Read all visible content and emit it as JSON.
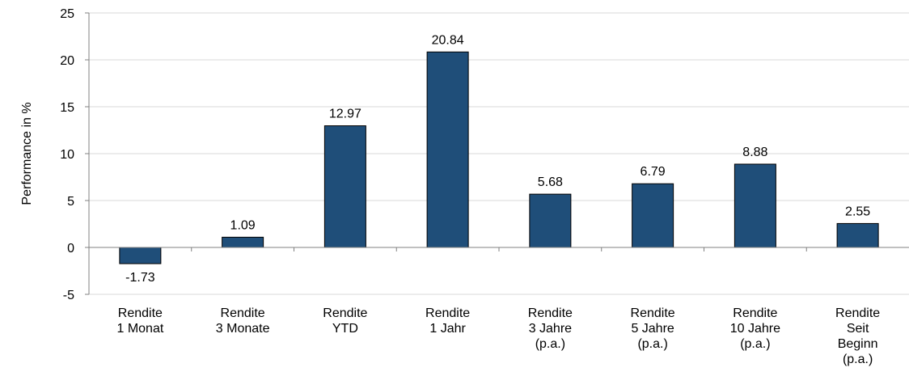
{
  "chart_data": {
    "type": "bar",
    "categories": [
      [
        "Rendite",
        "1 Monat"
      ],
      [
        "Rendite",
        "3 Monate"
      ],
      [
        "Rendite",
        "YTD"
      ],
      [
        "Rendite",
        "1 Jahr"
      ],
      [
        "Rendite",
        "3 Jahre",
        "(p.a.)"
      ],
      [
        "Rendite",
        "5 Jahre",
        "(p.a.)"
      ],
      [
        "Rendite",
        "10 Jahre",
        "(p.a.)"
      ],
      [
        "Rendite",
        "Seit",
        "Beginn",
        "(p.a.)"
      ]
    ],
    "values": [
      -1.73,
      1.09,
      12.97,
      20.84,
      5.68,
      6.79,
      8.88,
      2.55
    ],
    "data_labels": [
      "-1.73",
      "1.09",
      "12.97",
      "20.84",
      "5.68",
      "6.79",
      "8.88",
      "2.55"
    ],
    "ylabel": "Performance in %",
    "ylim": [
      -5,
      25
    ],
    "yticks": [
      -5,
      0,
      5,
      10,
      15,
      20,
      25
    ],
    "grid": true,
    "bar_color": "#1F4E79",
    "grid_color": "#D9D9D9"
  }
}
